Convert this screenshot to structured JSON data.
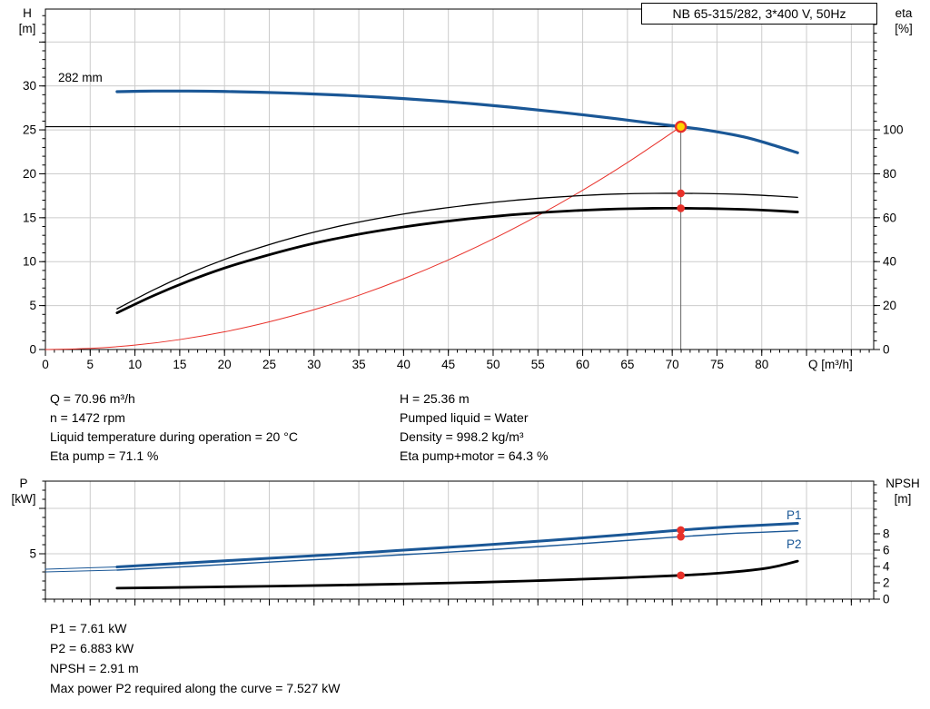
{
  "title_box": "NB 65-315/282, 3*400 V, 50Hz",
  "colors": {
    "curve_blue": "#1a5796",
    "curve_red": "#e8312a",
    "curve_black": "#000000",
    "duty_fill": "#ffd500",
    "grid": "#cccccc",
    "axis": "#000000",
    "duty_line": "#666666"
  },
  "info_top": {
    "left": [
      "Q = 70.96 m³/h",
      "n = 1472 rpm",
      "Liquid temperature during operation = 20 °C",
      "Eta pump = 71.1 %"
    ],
    "right": [
      "H = 25.36 m",
      "Pumped liquid = Water",
      "Density = 998.2 kg/m³",
      "Eta pump+motor = 64.3 %"
    ]
  },
  "info_bottom": [
    "P1 = 7.61 kW",
    "P2 = 6.883 kW",
    "NPSH = 2.91 m",
    "Max power P2 required along the curve = 7.527 kW"
  ],
  "chart_data": [
    {
      "type": "line",
      "name": "hq-eta-chart",
      "title": "NB 65-315/282, 3*400 V, 50Hz",
      "impeller_label": "282 mm",
      "grid": true,
      "x_axis": {
        "label": "Q [m³/h]",
        "min": 0,
        "max": 92.5,
        "labeled_ticks": [
          0,
          5,
          10,
          15,
          20,
          25,
          30,
          35,
          40,
          45,
          50,
          55,
          60,
          65,
          70,
          75,
          80
        ],
        "grid_ticks": [
          5,
          10,
          15,
          20,
          25,
          30,
          35,
          40,
          45,
          50,
          55,
          60,
          65,
          70,
          75,
          80,
          85,
          90
        ],
        "minor_step": 1,
        "show_labels": true
      },
      "y_left": {
        "name": "H",
        "unit": "[m]",
        "min": 0,
        "max": 38.75,
        "labeled_ticks": [
          0,
          5,
          10,
          15,
          20,
          25,
          30
        ],
        "grid_ticks": [
          5,
          10,
          15,
          20,
          25,
          30,
          35
        ],
        "minor_step": 1
      },
      "y_right": {
        "name": "eta",
        "unit": "[%]",
        "min": 0,
        "max": 155,
        "labeled_ticks": [
          0,
          20,
          40,
          60,
          80,
          100
        ],
        "minor_step": 4
      },
      "duty_point": {
        "q": 70.96,
        "h": 25.36
      },
      "series": [
        {
          "name": "system-curve",
          "axis": "left",
          "color": "#e8312a",
          "width": 1,
          "x": [
            0,
            5,
            10,
            15,
            20,
            25,
            30,
            35,
            40,
            45,
            50,
            55,
            60,
            65,
            70.96
          ],
          "y": [
            0,
            0.13,
            0.5,
            1.13,
            2.01,
            3.15,
            4.53,
            6.17,
            8.06,
            10.2,
            12.59,
            15.23,
            18.13,
            21.28,
            25.36
          ]
        },
        {
          "name": "pump-curve-282mm",
          "axis": "left",
          "color": "#1a5796",
          "width": 3.2,
          "x": [
            8,
            12,
            16,
            20,
            24,
            28,
            32,
            36,
            40,
            44,
            48,
            52,
            56,
            60,
            64,
            68,
            70.96,
            74,
            78,
            81,
            84
          ],
          "y": [
            29.35,
            29.42,
            29.42,
            29.37,
            29.28,
            29.16,
            29.0,
            28.8,
            28.56,
            28.28,
            27.95,
            27.58,
            27.16,
            26.72,
            26.24,
            25.72,
            25.36,
            24.95,
            24.2,
            23.35,
            22.4
          ]
        },
        {
          "name": "eta-pump-curve",
          "axis": "right",
          "color": "#000000",
          "width": 1.3,
          "x": [
            8,
            12,
            16,
            20,
            24,
            28,
            32,
            36,
            40,
            44,
            48,
            52,
            56,
            60,
            64,
            68,
            70.96,
            74,
            78,
            81,
            84
          ],
          "y": [
            18.5,
            27,
            34.5,
            41,
            46.5,
            51.3,
            55.4,
            58.8,
            61.7,
            64.1,
            66.1,
            67.8,
            69.1,
            70.1,
            70.8,
            71.1,
            71.1,
            71.0,
            70.6,
            70.0,
            69.3
          ]
        },
        {
          "name": "eta-pump-motor-curve",
          "axis": "right",
          "color": "#000000",
          "width": 2.8,
          "x": [
            8,
            12,
            16,
            20,
            24,
            28,
            32,
            36,
            40,
            44,
            48,
            52,
            56,
            60,
            64,
            68,
            70.96,
            74,
            78,
            81,
            84
          ],
          "y": [
            16.7,
            24.4,
            31.2,
            37.1,
            42.0,
            46.4,
            50.1,
            53.2,
            55.8,
            58.0,
            59.8,
            61.3,
            62.5,
            63.4,
            64.0,
            64.3,
            64.3,
            64.2,
            63.8,
            63.3,
            62.6
          ]
        }
      ],
      "dots": [
        {
          "name": "eta-pump-dot",
          "q": 70.96,
          "v": 71.1,
          "axis": "right"
        },
        {
          "name": "eta-pump-motor-dot",
          "q": 70.96,
          "v": 64.3,
          "axis": "right"
        }
      ]
    },
    {
      "type": "line",
      "name": "power-npsh-chart",
      "p1_label": "P1",
      "p2_label": "P2",
      "grid": true,
      "x_axis": {
        "label": "",
        "min": 0,
        "max": 92.5,
        "labeled_ticks": [],
        "grid_ticks": [
          5,
          10,
          15,
          20,
          25,
          30,
          35,
          40,
          45,
          50,
          55,
          60,
          65,
          70,
          75,
          80,
          85,
          90
        ],
        "minor_step": 1,
        "show_labels": false
      },
      "y_left": {
        "name": "P",
        "unit": "[kW]",
        "min": 0,
        "max": 13,
        "labeled_ticks": [
          5
        ],
        "grid_ticks": [
          5,
          10
        ],
        "minor_step": 1
      },
      "y_right": {
        "name": "NPSH",
        "unit": "[m]",
        "min": 0,
        "max": 14.44,
        "labeled_ticks": [
          0,
          2,
          4,
          6,
          8
        ],
        "minor_step": 1
      },
      "series": [
        {
          "name": "p1-lead-in",
          "axis": "left",
          "color": "#1a5796",
          "width": 1,
          "x": [
            0,
            8
          ],
          "y": [
            3.3,
            3.55
          ]
        },
        {
          "name": "p2-lead-in",
          "axis": "left",
          "color": "#1a5796",
          "width": 1,
          "x": [
            0,
            8
          ],
          "y": [
            3.0,
            3.2
          ]
        },
        {
          "name": "p1-curve",
          "axis": "left",
          "color": "#1a5796",
          "width": 3,
          "x": [
            8,
            16,
            24,
            32,
            40,
            48,
            56,
            64,
            70.96,
            76,
            80,
            84
          ],
          "y": [
            3.55,
            4.0,
            4.45,
            4.9,
            5.4,
            5.9,
            6.45,
            7.05,
            7.61,
            7.95,
            8.15,
            8.35
          ]
        },
        {
          "name": "p2-curve",
          "axis": "left",
          "color": "#1a5796",
          "width": 1.4,
          "x": [
            8,
            16,
            24,
            32,
            40,
            48,
            56,
            64,
            70.96,
            76,
            80,
            84
          ],
          "y": [
            3.2,
            3.6,
            4.03,
            4.45,
            4.9,
            5.35,
            5.85,
            6.4,
            6.883,
            7.2,
            7.37,
            7.527
          ]
        },
        {
          "name": "npsh-curve",
          "axis": "right",
          "color": "#000000",
          "width": 2.8,
          "x": [
            8,
            16,
            24,
            32,
            40,
            48,
            56,
            64,
            70.96,
            76,
            80,
            82,
            84
          ],
          "y": [
            1.35,
            1.45,
            1.57,
            1.7,
            1.86,
            2.05,
            2.3,
            2.6,
            2.91,
            3.25,
            3.7,
            4.1,
            4.65
          ]
        }
      ],
      "dots": [
        {
          "name": "p1-dot",
          "q": 70.96,
          "v": 7.61,
          "axis": "left"
        },
        {
          "name": "p2-dot",
          "q": 70.96,
          "v": 6.883,
          "axis": "left"
        },
        {
          "name": "npsh-dot",
          "q": 70.96,
          "v": 2.91,
          "axis": "right"
        }
      ]
    }
  ]
}
